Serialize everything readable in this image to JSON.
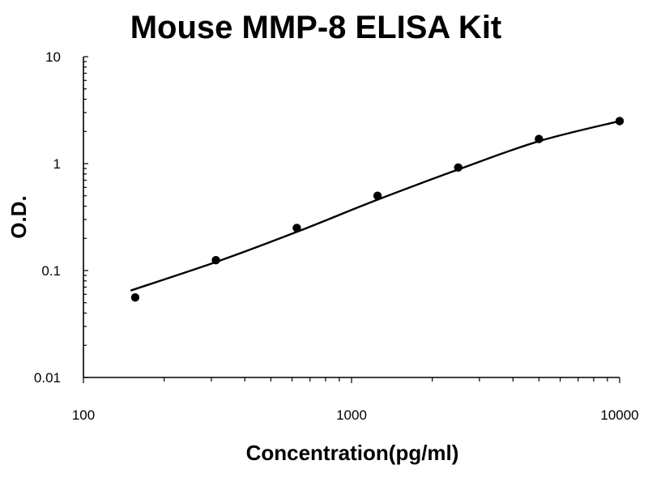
{
  "chart_data": {
    "type": "scatter",
    "title": "Mouse MMP-8 ELISA Kit",
    "xlabel": "Concentration(pg/ml)",
    "ylabel": "O.D.",
    "x_scale": "log",
    "y_scale": "log",
    "xlim": [
      100,
      10000
    ],
    "ylim": [
      0.01,
      10
    ],
    "x_ticks": [
      "100",
      "1000",
      "10000"
    ],
    "y_ticks": [
      "10",
      "1",
      "0.1",
      "0.01"
    ],
    "grid": false,
    "series": [
      {
        "x": [
          156,
          312,
          625,
          1250,
          2500,
          5000,
          10000
        ],
        "y": [
          0.056,
          0.125,
          0.25,
          0.5,
          0.92,
          1.7,
          2.5
        ]
      }
    ],
    "trendline": {
      "style": "smooth curve",
      "x": [
        150,
        312,
        625,
        1250,
        2500,
        5000,
        10000
      ],
      "y": [
        0.065,
        0.12,
        0.23,
        0.46,
        0.88,
        1.62,
        2.5
      ]
    },
    "colors": {
      "axis": "#000000",
      "points": "#000000",
      "line": "#000000"
    }
  }
}
